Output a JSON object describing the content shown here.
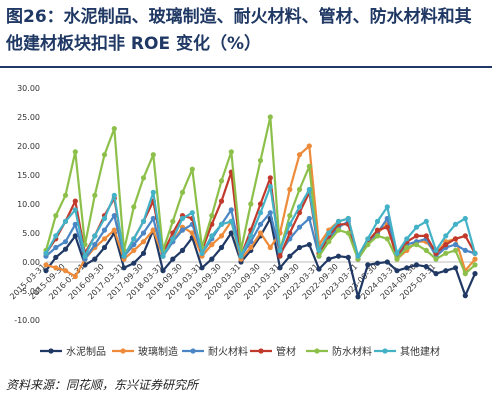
{
  "title": "图26：水泥制品、玻璃制造、耐火材料、管材、防水材料和其他建材板块扣非 ROE 变化（%）",
  "source": "资料来源：同花顺，东兴证券研究所",
  "chart_data": {
    "type": "line",
    "x": [
      "2015-03",
      "2015-06",
      "2015-09",
      "2015-12",
      "2016-03",
      "2016-06",
      "2016-09",
      "2016-12",
      "2017-03",
      "2017-06",
      "2017-09",
      "2017-12",
      "2018-03",
      "2018-06",
      "2018-09",
      "2018-12",
      "2019-03",
      "2019-06",
      "2019-09",
      "2019-12",
      "2020-03",
      "2020-06",
      "2020-09",
      "2020-12",
      "2021-03",
      "2021-06",
      "2021-09",
      "2021-12",
      "2022-03",
      "2022-06",
      "2022-09",
      "2022-12",
      "2023-03",
      "2023-06",
      "2023-09",
      "2023-12",
      "2024-03",
      "2024-06",
      "2024-09",
      "2024-12",
      "2025-03",
      "2025-06",
      "2025-09",
      "2025-12",
      "2026-03"
    ],
    "x_tick_labels": [
      "2015-03-31",
      "2015-09-30",
      "2016-03-31",
      "2016-09-30",
      "2017-03-31",
      "2017-09-30",
      "2018-03-31",
      "2018-09-30",
      "2019-03-31",
      "2019-09-30",
      "2020-03-31",
      "2020-09-30",
      "2021-03-31",
      "2021-09-30",
      "2022-03-31",
      "2022-09-30",
      "2023-03-31",
      "2023-09-30",
      "2024-03-31",
      "2024-09-30",
      "2025-03-31"
    ],
    "ylim": [
      -10,
      30
    ],
    "y_ticks": [
      "-10.00",
      "-5.00",
      "0.00",
      "5.00",
      "10.00",
      "15.00",
      "20.00",
      "25.00",
      "30.00"
    ],
    "grid": false,
    "legend_position": "bottom",
    "series": [
      {
        "name": "水泥制品",
        "color": "#1f3864",
        "values": [
          -1.5,
          0.8,
          2.2,
          4.5,
          -0.5,
          0.5,
          2.5,
          5.0,
          -1.0,
          -0.2,
          1.5,
          5.5,
          -1.5,
          0.5,
          2.0,
          4.2,
          -1.0,
          0.5,
          2.5,
          5.0,
          0.0,
          2.0,
          4.5,
          7.5,
          -1.0,
          1.0,
          2.5,
          3.0,
          -1.2,
          0.5,
          1.0,
          0.8,
          -6.0,
          -0.5,
          -0.2,
          0.0,
          -1.5,
          -1.0,
          -0.5,
          -0.8,
          -2.0,
          -1.5,
          -1.0,
          -5.8,
          -2.0
        ]
      },
      {
        "name": "玻璃制造",
        "color": "#ed8b3a",
        "values": [
          -0.5,
          -1.0,
          -1.5,
          -2.5,
          0.5,
          2.5,
          4.0,
          5.5,
          0.5,
          2.0,
          3.5,
          5.5,
          1.0,
          3.5,
          6.0,
          5.0,
          1.0,
          3.0,
          4.5,
          7.0,
          0.5,
          2.5,
          5.0,
          2.5,
          5.0,
          12.5,
          18.5,
          20.0,
          3.0,
          5.5,
          7.0,
          7.5,
          1.0,
          3.5,
          5.0,
          6.5,
          0.5,
          2.0,
          3.5,
          3.5,
          1.5,
          3.5,
          4.0,
          -1.5,
          0.5
        ]
      },
      {
        "name": "耐火材料",
        "color": "#4a86c5",
        "values": [
          1.0,
          2.5,
          3.5,
          6.5,
          0.5,
          3.0,
          5.5,
          8.0,
          1.0,
          3.0,
          5.0,
          7.5,
          1.0,
          3.5,
          5.5,
          6.5,
          1.5,
          4.0,
          6.5,
          9.0,
          1.0,
          3.5,
          6.5,
          8.5,
          1.5,
          4.0,
          6.0,
          7.5,
          1.0,
          4.0,
          6.0,
          7.0,
          0.5,
          3.5,
          5.0,
          7.5,
          1.0,
          3.0,
          3.5,
          4.0,
          1.0,
          2.5,
          3.0,
          2.0,
          1.5
        ]
      },
      {
        "name": "管材",
        "color": "#c0392b",
        "values": [
          1.5,
          4.0,
          7.0,
          10.5,
          1.5,
          4.5,
          8.0,
          11.0,
          1.0,
          4.0,
          7.0,
          10.5,
          1.5,
          5.0,
          8.0,
          7.5,
          2.0,
          6.5,
          10.5,
          15.5,
          1.0,
          5.5,
          10.0,
          14.5,
          1.0,
          5.0,
          8.5,
          12.0,
          1.5,
          4.5,
          6.5,
          6.5,
          0.5,
          3.5,
          5.5,
          6.0,
          1.0,
          3.5,
          4.5,
          4.5,
          1.5,
          3.0,
          4.0,
          4.5,
          1.5
        ]
      },
      {
        "name": "防水材料",
        "color": "#8dc04a",
        "values": [
          2.0,
          8.0,
          11.5,
          19.0,
          3.0,
          11.5,
          18.5,
          23.0,
          2.0,
          9.5,
          14.5,
          18.5,
          2.0,
          7.0,
          12.0,
          16.0,
          2.5,
          8.0,
          14.0,
          19.0,
          2.0,
          10.0,
          17.5,
          25.0,
          2.0,
          8.0,
          12.5,
          16.5,
          1.0,
          3.5,
          5.5,
          5.0,
          0.5,
          3.0,
          4.5,
          4.0,
          0.5,
          2.5,
          3.0,
          2.0,
          0.5,
          1.5,
          2.0,
          -2.0,
          -0.5
        ]
      },
      {
        "name": "其他建材",
        "color": "#43b2c7",
        "values": [
          1.5,
          4.5,
          7.0,
          9.0,
          1.0,
          4.5,
          7.5,
          11.5,
          1.0,
          4.0,
          7.0,
          12.0,
          1.0,
          4.0,
          7.5,
          8.5,
          1.5,
          4.5,
          6.5,
          7.0,
          1.0,
          4.5,
          8.5,
          13.0,
          2.0,
          6.5,
          9.5,
          12.5,
          2.0,
          5.0,
          7.0,
          7.5,
          1.0,
          4.0,
          7.0,
          9.5,
          1.5,
          4.0,
          6.0,
          7.0,
          2.0,
          4.5,
          6.5,
          7.5,
          1.5
        ]
      }
    ]
  }
}
